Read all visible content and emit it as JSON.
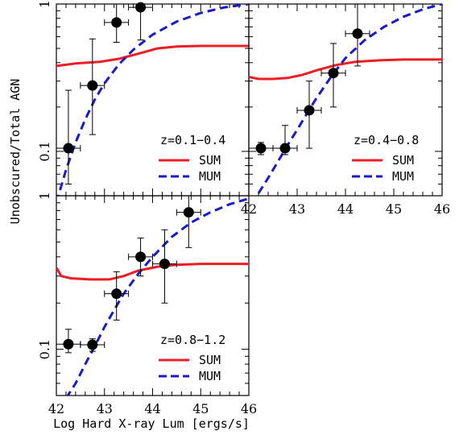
{
  "chart_data": {
    "type": "scatter",
    "xlabel": "Log Hard X-ray Lum [ergs/s]",
    "ylabel": "Unobscured/Total AGN",
    "xlim": [
      42,
      46
    ],
    "ylim_log": [
      0.05,
      1.0
    ],
    "x_tick_labels": [
      "42",
      "43",
      "44",
      "45",
      "46"
    ],
    "x_tick_values": [
      42,
      43,
      44,
      45,
      46
    ],
    "y_tick_labels": [
      "0.1",
      "1"
    ],
    "y_tick_values": [
      0.1,
      1
    ],
    "legend": {
      "sum_label": "SUM",
      "mum_label": "MUM",
      "sum_color": "#ee1c24",
      "mum_color": "#1a1acc"
    },
    "panels": [
      {
        "label": "z=0.1−0.4",
        "points": [
          {
            "x": 42.25,
            "y": 0.105,
            "xerr": 0.25,
            "ylo": 0.06,
            "yhi": 0.26
          },
          {
            "x": 42.75,
            "y": 0.28,
            "xerr": 0.25,
            "ylo": 0.13,
            "yhi": 0.58
          },
          {
            "x": 43.25,
            "y": 0.75,
            "xerr": 0.25,
            "ylo": 0.55,
            "yhi": 1.0
          },
          {
            "x": 43.75,
            "y": 0.95,
            "xerr": 0.25,
            "ylo": 0.57,
            "yhi": 1.0
          }
        ],
        "sum_curve": {
          "x": [
            42,
            42.4,
            42.9,
            43.3,
            43.7,
            44.1,
            44.5,
            45.0,
            45.5,
            46.0
          ],
          "y": [
            0.38,
            0.395,
            0.405,
            0.425,
            0.46,
            0.5,
            0.515,
            0.52,
            0.52,
            0.52
          ]
        },
        "mum_curve": {
          "x": [
            42.0,
            42.2,
            42.4,
            42.6,
            42.8,
            43.0,
            43.3,
            43.6,
            44.0,
            44.5,
            45.0,
            45.5,
            46.0
          ],
          "y": [
            0.045,
            0.075,
            0.115,
            0.165,
            0.225,
            0.29,
            0.39,
            0.49,
            0.62,
            0.76,
            0.87,
            0.95,
            1.0
          ]
        }
      },
      {
        "label": "z=0.4−0.8",
        "points": [
          {
            "x": 42.25,
            "y": 0.105,
            "xerr": 0.25,
            "ylo": 0.095,
            "yhi": 0.115
          },
          {
            "x": 42.75,
            "y": 0.105,
            "xerr": 0.25,
            "ylo": 0.095,
            "yhi": 0.15
          },
          {
            "x": 43.25,
            "y": 0.19,
            "xerr": 0.25,
            "ylo": 0.105,
            "yhi": 0.3
          },
          {
            "x": 43.75,
            "y": 0.34,
            "xerr": 0.25,
            "ylo": 0.2,
            "yhi": 0.54
          },
          {
            "x": 44.25,
            "y": 0.63,
            "xerr": 0.25,
            "ylo": 0.38,
            "yhi": 1.0
          }
        ],
        "sum_curve": {
          "x": [
            42,
            42.2,
            42.5,
            42.8,
            43.1,
            43.4,
            43.8,
            44.2,
            44.7,
            45.2,
            45.6,
            46.0
          ],
          "y": [
            0.32,
            0.31,
            0.31,
            0.315,
            0.33,
            0.355,
            0.385,
            0.405,
            0.415,
            0.42,
            0.42,
            0.42
          ]
        },
        "mum_curve": {
          "x": [
            42.2,
            42.4,
            42.6,
            42.8,
            43.0,
            43.2,
            43.4,
            43.7,
            44.0,
            44.4,
            44.8,
            45.2,
            45.6,
            46.0
          ],
          "y": [
            0.052,
            0.066,
            0.085,
            0.11,
            0.14,
            0.18,
            0.23,
            0.32,
            0.43,
            0.57,
            0.7,
            0.82,
            0.92,
            1.0
          ]
        }
      },
      {
        "label": "z=0.8−1.2",
        "points": [
          {
            "x": 42.25,
            "y": 0.108,
            "xerr": 0.25,
            "ylo": 0.095,
            "yhi": 0.135
          },
          {
            "x": 42.75,
            "y": 0.107,
            "xerr": 0.25,
            "ylo": 0.097,
            "yhi": 0.117
          },
          {
            "x": 43.25,
            "y": 0.23,
            "xerr": 0.25,
            "ylo": 0.155,
            "yhi": 0.32
          },
          {
            "x": 43.75,
            "y": 0.4,
            "xerr": 0.25,
            "ylo": 0.3,
            "yhi": 0.53
          },
          {
            "x": 44.25,
            "y": 0.36,
            "xerr": 0.25,
            "ylo": 0.2,
            "yhi": 0.6
          },
          {
            "x": 44.75,
            "y": 0.78,
            "xerr": 0.25,
            "ylo": 0.46,
            "yhi": 1.0
          }
        ],
        "sum_curve": {
          "x": [
            42,
            42.1,
            42.3,
            42.7,
            43.1,
            43.4,
            43.7,
            44.1,
            44.5,
            45.0,
            45.5,
            46.0
          ],
          "y": [
            0.34,
            0.3,
            0.29,
            0.285,
            0.285,
            0.3,
            0.325,
            0.345,
            0.355,
            0.36,
            0.36,
            0.36
          ]
        },
        "mum_curve": {
          "x": [
            42.2,
            42.4,
            42.6,
            42.8,
            43.0,
            43.2,
            43.4,
            43.7,
            44.0,
            44.4,
            44.8,
            45.2,
            45.6,
            46.0
          ],
          "y": [
            0.048,
            0.06,
            0.08,
            0.105,
            0.14,
            0.18,
            0.23,
            0.31,
            0.4,
            0.54,
            0.67,
            0.78,
            0.88,
            0.96
          ]
        }
      }
    ]
  }
}
